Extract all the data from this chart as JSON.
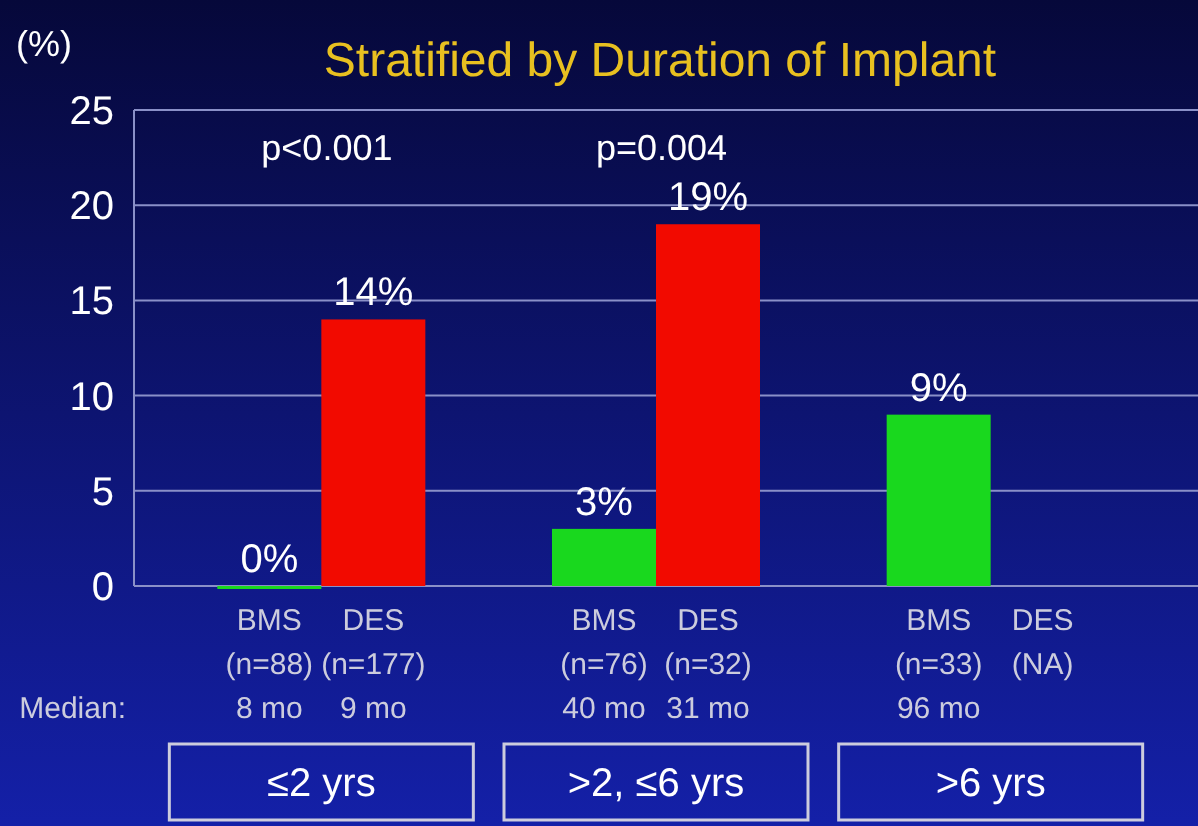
{
  "chart_data": {
    "type": "bar",
    "title": "Stratified by Duration of Implant",
    "ylabel": "(%)",
    "categories": [
      "BMS\n(n=88)\n8 mo",
      "DES\n(n=177)\n9 mo",
      "BMS\n(n=76)\n40 mo",
      "DES\n(n=32)\n31 mo",
      "BMS\n(n=33)\n96 mo",
      "DES\n(NA)"
    ],
    "values": [
      0,
      14,
      3,
      19,
      9,
      null
    ],
    "colors": [
      "#19d81e",
      "#f20a00",
      "#19d81e",
      "#f20a00",
      "#19d81e",
      null
    ],
    "value_labels": [
      "0%",
      "14%",
      "3%",
      "19%",
      "9%",
      null
    ],
    "ylim": [
      0,
      25
    ],
    "yticks": [
      0,
      5,
      10,
      15,
      20,
      25
    ],
    "grid": "y",
    "annotations": [
      "p<0.001",
      "p=0.004",
      "Median:",
      "≤2 yrs",
      ">2, ≤6 yrs",
      ">6 yrs"
    ]
  }
}
